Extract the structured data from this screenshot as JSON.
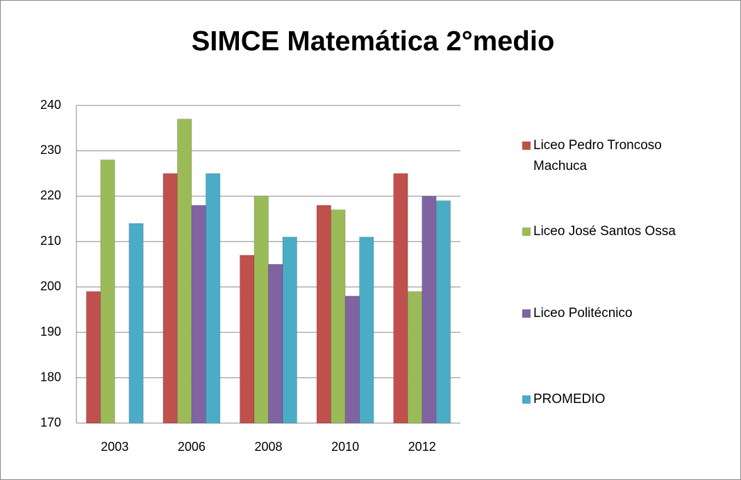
{
  "chart_data": {
    "type": "bar",
    "title": "SIMCE Matemática 2°medio",
    "categories": [
      "2003",
      "2006",
      "2008",
      "2010",
      "2012"
    ],
    "series": [
      {
        "name": "Liceo Pedro Troncoso Machuca",
        "color": "#c0504d",
        "values": [
          199,
          225,
          207,
          218,
          225
        ]
      },
      {
        "name": "Liceo José Santos Ossa",
        "color": "#9bbb59",
        "values": [
          228,
          237,
          220,
          217,
          199
        ]
      },
      {
        "name": "Liceo Politécnico",
        "color": "#8064a2",
        "values": [
          null,
          218,
          205,
          198,
          220
        ]
      },
      {
        "name": "PROMEDIO",
        "color": "#4bacc6",
        "values": [
          214,
          225,
          211,
          211,
          219
        ]
      }
    ],
    "ylim": [
      170,
      240
    ],
    "yticks": [
      170,
      180,
      190,
      200,
      210,
      220,
      230,
      240
    ],
    "grid": true,
    "legend": "right"
  }
}
